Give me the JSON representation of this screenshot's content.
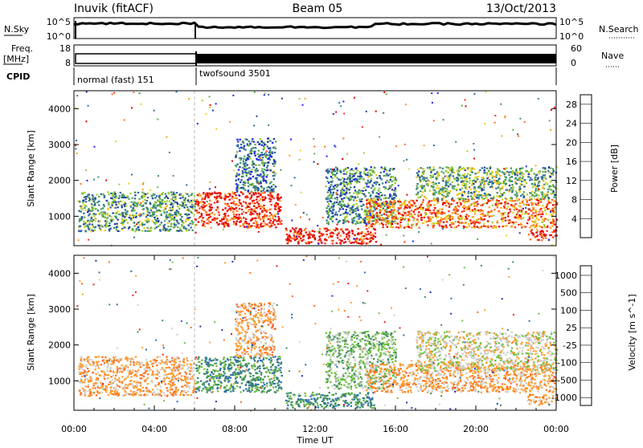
{
  "header": {
    "station": "Inuvik (fitACF)",
    "beam": "Beam 05",
    "date": "13/Oct/2013"
  },
  "status_panels": {
    "nsky_label": "N.Sky",
    "nsky_ticks": [
      "10^5",
      "10^0"
    ],
    "nsearch_label": "N.Search",
    "nsearch_ticks": [
      "10^5",
      "10^0"
    ],
    "freq_label_top": "Freq.",
    "freq_label_bottom": "[MHz]",
    "freq_ticks": [
      "18",
      "8"
    ],
    "nave_label": "Nave",
    "nave_ticks": [
      "60",
      "0"
    ],
    "cpid_label": "CPID",
    "cpid_segments": [
      {
        "label": "normal (fast) 151",
        "start_hour": 0,
        "end_hour": 6
      },
      {
        "label": "twofsound 3501",
        "start_hour": 6,
        "end_hour": 24
      }
    ]
  },
  "chart_data": [
    {
      "type": "heatmap",
      "panel": "power",
      "xlabel": "",
      "ylabel": "Slant Range [km]",
      "xlim": [
        0,
        24
      ],
      "ylim": [
        180,
        4500
      ],
      "y_ticks": [
        1000,
        2000,
        3000,
        4000
      ],
      "colorbar_label": "Power [dB]",
      "colorbar_ticks": [
        "4",
        "8",
        "12",
        "16",
        "20",
        "24",
        "28"
      ],
      "colors": [
        "#1f1fff",
        "#1f3f9f",
        "#2f6f9f",
        "#3f8f6f",
        "#5faf4f",
        "#9fcf2f",
        "#efd01f",
        "#ffa01f",
        "#ff6f1f",
        "#ff2f1f",
        "#e00000"
      ],
      "regions": [
        {
          "x": [
            0.2,
            6.0
          ],
          "y": [
            600,
            1700
          ],
          "level": 0.35
        },
        {
          "x": [
            6.0,
            10.3
          ],
          "y": [
            700,
            1700
          ],
          "level": 0.9
        },
        {
          "x": [
            8.0,
            10.0
          ],
          "y": [
            1700,
            3200
          ],
          "level": 0.25
        },
        {
          "x": [
            10.5,
            15.0
          ],
          "y": [
            250,
            700
          ],
          "level": 0.95
        },
        {
          "x": [
            12.5,
            16.0
          ],
          "y": [
            800,
            2400
          ],
          "level": 0.3
        },
        {
          "x": [
            14.5,
            24.0
          ],
          "y": [
            700,
            1500
          ],
          "level": 0.75
        },
        {
          "x": [
            17.0,
            24.0
          ],
          "y": [
            1500,
            2400
          ],
          "level": 0.4
        },
        {
          "x": [
            22.5,
            24.0
          ],
          "y": [
            350,
            650
          ],
          "level": 0.95
        }
      ]
    },
    {
      "type": "heatmap",
      "panel": "velocity",
      "xlabel": "Time UT",
      "ylabel": "Slant Range [km]",
      "xlim": [
        0,
        24
      ],
      "ylim": [
        180,
        4500
      ],
      "x_ticks": [
        "00:00",
        "04:00",
        "08:00",
        "12:00",
        "16:00",
        "20:00",
        "00:00"
      ],
      "y_ticks": [
        1000,
        2000,
        3000,
        4000
      ],
      "colorbar_label": "Velocity [m s^-1]",
      "colorbar_ticks": [
        "1000",
        "500",
        "100",
        "25",
        "-25",
        "-100",
        "-500",
        "-1000"
      ],
      "colors": [
        "#1f2fbf",
        "#2f6faf",
        "#3f8f5f",
        "#6fbf3f",
        "#cfcfcf",
        "#ff9f2f",
        "#ff6f1f",
        "#ef1f1f"
      ],
      "regions": [
        {
          "x": [
            0.2,
            6.0
          ],
          "y": [
            600,
            1700
          ],
          "level": 5
        },
        {
          "x": [
            6.0,
            10.3
          ],
          "y": [
            700,
            1700
          ],
          "level": 2
        },
        {
          "x": [
            8.0,
            10.0
          ],
          "y": [
            1700,
            3200
          ],
          "level": 5
        },
        {
          "x": [
            10.5,
            15.0
          ],
          "y": [
            250,
            700
          ],
          "level": 2
        },
        {
          "x": [
            12.5,
            16.0
          ],
          "y": [
            800,
            2400
          ],
          "level": 3
        },
        {
          "x": [
            14.5,
            24.0
          ],
          "y": [
            700,
            1500
          ],
          "level": 5
        },
        {
          "x": [
            17.0,
            24.0
          ],
          "y": [
            1300,
            2400
          ],
          "level": 4
        },
        {
          "x": [
            22.5,
            24.0
          ],
          "y": [
            350,
            650
          ],
          "level": 5
        }
      ]
    }
  ]
}
